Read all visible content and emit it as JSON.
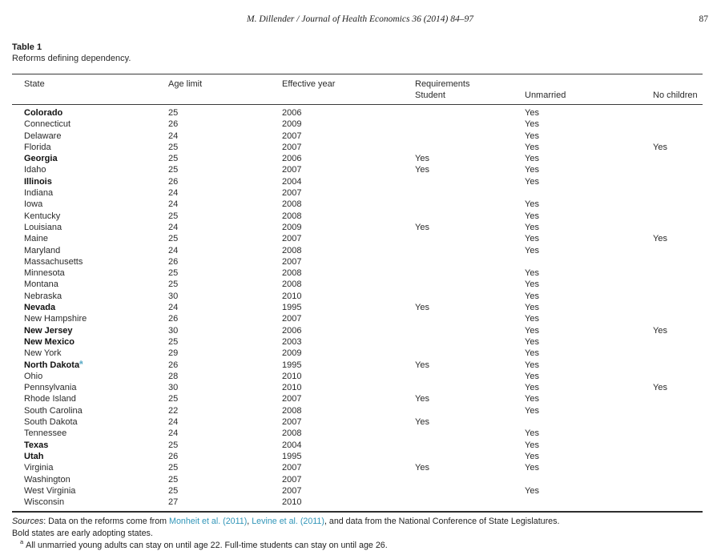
{
  "colors": {
    "link_teal": "#3095b8",
    "text": "#1c1c1c",
    "rule": "#3a3a3a"
  },
  "running_head": {
    "title": "M. Dillender / Journal of Health Economics 36 (2014) 84–97",
    "page_number": "87"
  },
  "table": {
    "label": "Table 1",
    "caption": "Reforms defining dependency.",
    "column_headers": {
      "state": "State",
      "age_limit": "Age limit",
      "effective_year": "Effective year",
      "requirements": "Requirements",
      "student": "Student",
      "unmarried": "Unmarried",
      "no_children": "No children"
    },
    "rows": [
      {
        "state": "Colorado",
        "bold": true,
        "note": "",
        "age": "25",
        "year": "2006",
        "student": "",
        "unmarried": "Yes",
        "children": ""
      },
      {
        "state": "Connecticut",
        "bold": false,
        "note": "",
        "age": "26",
        "year": "2009",
        "student": "",
        "unmarried": "Yes",
        "children": ""
      },
      {
        "state": "Delaware",
        "bold": false,
        "note": "",
        "age": "24",
        "year": "2007",
        "student": "",
        "unmarried": "Yes",
        "children": ""
      },
      {
        "state": "Florida",
        "bold": false,
        "note": "",
        "age": "25",
        "year": "2007",
        "student": "",
        "unmarried": "Yes",
        "children": "Yes"
      },
      {
        "state": "Georgia",
        "bold": true,
        "note": "",
        "age": "25",
        "year": "2006",
        "student": "Yes",
        "unmarried": "Yes",
        "children": ""
      },
      {
        "state": "Idaho",
        "bold": false,
        "note": "",
        "age": "25",
        "year": "2007",
        "student": "Yes",
        "unmarried": "Yes",
        "children": ""
      },
      {
        "state": "Illinois",
        "bold": true,
        "note": "",
        "age": "26",
        "year": "2004",
        "student": "",
        "unmarried": "Yes",
        "children": ""
      },
      {
        "state": "Indiana",
        "bold": false,
        "note": "",
        "age": "24",
        "year": "2007",
        "student": "",
        "unmarried": "",
        "children": ""
      },
      {
        "state": "Iowa",
        "bold": false,
        "note": "",
        "age": "24",
        "year": "2008",
        "student": "",
        "unmarried": "Yes",
        "children": ""
      },
      {
        "state": "Kentucky",
        "bold": false,
        "note": "",
        "age": "25",
        "year": "2008",
        "student": "",
        "unmarried": "Yes",
        "children": ""
      },
      {
        "state": "Louisiana",
        "bold": false,
        "note": "",
        "age": "24",
        "year": "2009",
        "student": "Yes",
        "unmarried": "Yes",
        "children": ""
      },
      {
        "state": "Maine",
        "bold": false,
        "note": "",
        "age": "25",
        "year": "2007",
        "student": "",
        "unmarried": "Yes",
        "children": "Yes"
      },
      {
        "state": "Maryland",
        "bold": false,
        "note": "",
        "age": "24",
        "year": "2008",
        "student": "",
        "unmarried": "Yes",
        "children": ""
      },
      {
        "state": "Massachusetts",
        "bold": false,
        "note": "",
        "age": "26",
        "year": "2007",
        "student": "",
        "unmarried": "",
        "children": ""
      },
      {
        "state": "Minnesota",
        "bold": false,
        "note": "",
        "age": "25",
        "year": "2008",
        "student": "",
        "unmarried": "Yes",
        "children": ""
      },
      {
        "state": "Montana",
        "bold": false,
        "note": "",
        "age": "25",
        "year": "2008",
        "student": "",
        "unmarried": "Yes",
        "children": ""
      },
      {
        "state": "Nebraska",
        "bold": false,
        "note": "",
        "age": "30",
        "year": "2010",
        "student": "",
        "unmarried": "Yes",
        "children": ""
      },
      {
        "state": "Nevada",
        "bold": true,
        "note": "",
        "age": "24",
        "year": "1995",
        "student": "Yes",
        "unmarried": "Yes",
        "children": ""
      },
      {
        "state": "New Hampshire",
        "bold": false,
        "note": "",
        "age": "26",
        "year": "2007",
        "student": "",
        "unmarried": "Yes",
        "children": ""
      },
      {
        "state": "New Jersey",
        "bold": true,
        "note": "",
        "age": "30",
        "year": "2006",
        "student": "",
        "unmarried": "Yes",
        "children": "Yes"
      },
      {
        "state": "New Mexico",
        "bold": true,
        "note": "",
        "age": "25",
        "year": "2003",
        "student": "",
        "unmarried": "Yes",
        "children": ""
      },
      {
        "state": "New York",
        "bold": false,
        "note": "",
        "age": "29",
        "year": "2009",
        "student": "",
        "unmarried": "Yes",
        "children": ""
      },
      {
        "state": "North Dakota",
        "bold": true,
        "note": "a",
        "age": "26",
        "year": "1995",
        "student": "Yes",
        "unmarried": "Yes",
        "children": ""
      },
      {
        "state": "Ohio",
        "bold": false,
        "note": "",
        "age": "28",
        "year": "2010",
        "student": "",
        "unmarried": "Yes",
        "children": ""
      },
      {
        "state": "Pennsylvania",
        "bold": false,
        "note": "",
        "age": "30",
        "year": "2010",
        "student": "",
        "unmarried": "Yes",
        "children": "Yes"
      },
      {
        "state": "Rhode Island",
        "bold": false,
        "note": "",
        "age": "25",
        "year": "2007",
        "student": "Yes",
        "unmarried": "Yes",
        "children": ""
      },
      {
        "state": "South Carolina",
        "bold": false,
        "note": "",
        "age": "22",
        "year": "2008",
        "student": "",
        "unmarried": "Yes",
        "children": ""
      },
      {
        "state": "South Dakota",
        "bold": false,
        "note": "",
        "age": "24",
        "year": "2007",
        "student": "Yes",
        "unmarried": "",
        "children": ""
      },
      {
        "state": "Tennessee",
        "bold": false,
        "note": "",
        "age": "24",
        "year": "2008",
        "student": "",
        "unmarried": "Yes",
        "children": ""
      },
      {
        "state": "Texas",
        "bold": true,
        "note": "",
        "age": "25",
        "year": "2004",
        "student": "",
        "unmarried": "Yes",
        "children": ""
      },
      {
        "state": "Utah",
        "bold": true,
        "note": "",
        "age": "26",
        "year": "1995",
        "student": "",
        "unmarried": "Yes",
        "children": ""
      },
      {
        "state": "Virginia",
        "bold": false,
        "note": "",
        "age": "25",
        "year": "2007",
        "student": "Yes",
        "unmarried": "Yes",
        "children": ""
      },
      {
        "state": "Washington",
        "bold": false,
        "note": "",
        "age": "25",
        "year": "2007",
        "student": "",
        "unmarried": "",
        "children": ""
      },
      {
        "state": "West Virginia",
        "bold": false,
        "note": "",
        "age": "25",
        "year": "2007",
        "student": "",
        "unmarried": "Yes",
        "children": ""
      },
      {
        "state": "Wisconsin",
        "bold": false,
        "note": "",
        "age": "27",
        "year": "2010",
        "student": "",
        "unmarried": "",
        "children": ""
      }
    ]
  },
  "footer": {
    "sources_label": "Sources",
    "sources_colon": ": ",
    "sources_pre": "Data on the reforms come from ",
    "link_monheit": "Monheit et al. (2011)",
    "sources_mid": ", ",
    "link_levine": "Levine et al. (2011)",
    "sources_post": ", and data from the National Conference of State Legislatures.",
    "bold_note": "Bold states are early adopting states.",
    "footnote_marker": "a",
    "footnote_text": "All unmarried young adults can stay on until age 22. Full-time students can stay on until age 26."
  }
}
